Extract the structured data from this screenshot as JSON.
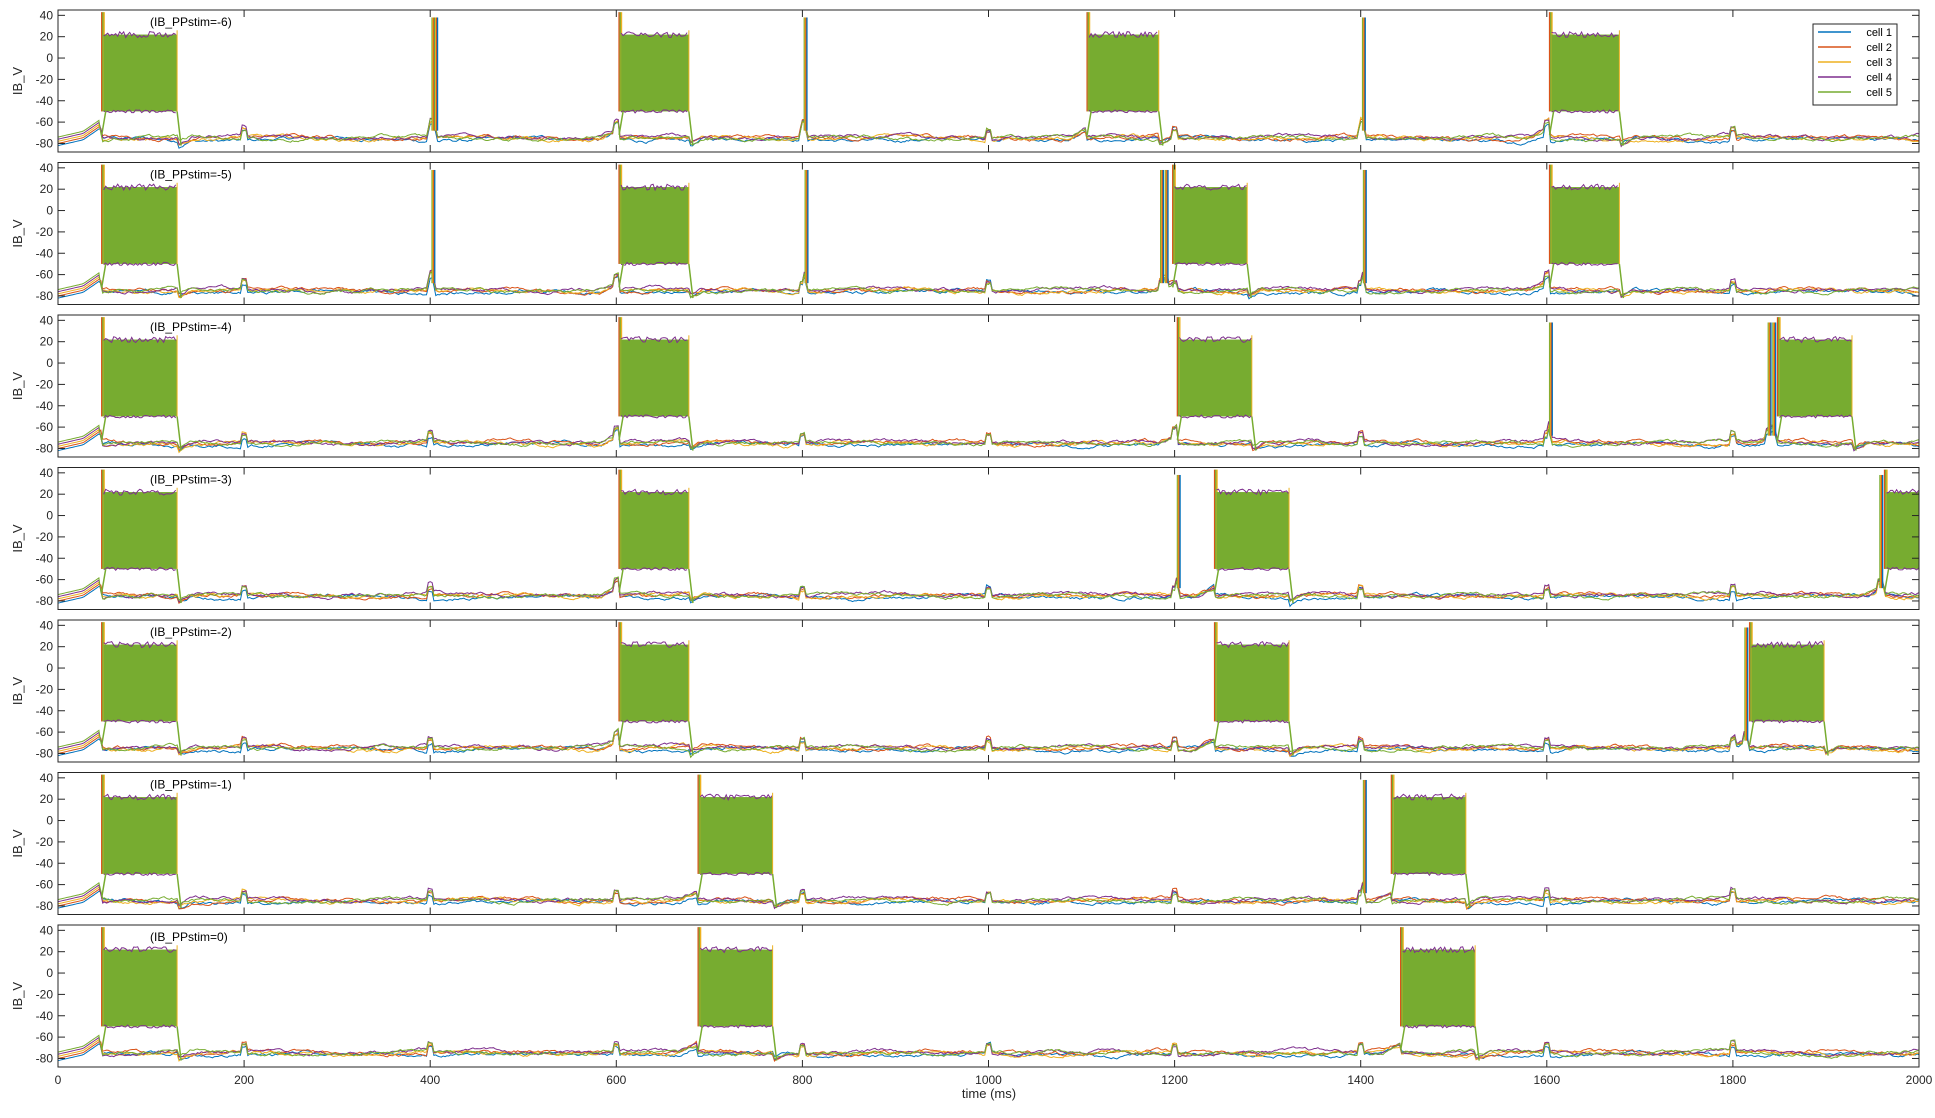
{
  "colors": {
    "cell_1": "#0072BD",
    "cell_2": "#D95319",
    "cell_3": "#EDB120",
    "cell_4": "#7E2F8E",
    "cell_5": "#77AC30",
    "axes": "#262626",
    "background": "#ffffff"
  },
  "chart_data": {
    "type": "line",
    "layout": "7 stacked subplots, shared x-axis",
    "xlabel": "time (ms)",
    "xlim": [
      0,
      2000
    ],
    "xticks": [
      0,
      200,
      400,
      600,
      800,
      1000,
      1200,
      1400,
      1600,
      1800,
      2000
    ],
    "ylim": [
      -88,
      45
    ],
    "yticks": [
      -80,
      -60,
      -40,
      -20,
      0,
      20,
      40
    ],
    "ylabel": "IB_V",
    "grid": false,
    "legend": {
      "placement": "top-right of first subplot",
      "entries": [
        "cell 1",
        "cell 2",
        "cell 3",
        "cell 4",
        "cell 5"
      ]
    },
    "baseline_mV": -75,
    "burst_plateau_mV": [
      -50,
      22
    ],
    "panels": [
      {
        "title": "(IB_PPstim=-6)",
        "bursts_ms": [
          [
            47,
            128
          ],
          [
            603,
            678
          ],
          [
            1106,
            1183
          ],
          [
            1603,
            1678
          ]
        ],
        "single_spikes_ms": [
          402,
          405,
          802,
          1402
        ]
      },
      {
        "title": "(IB_PPstim=-5)",
        "bursts_ms": [
          [
            47,
            128
          ],
          [
            603,
            678
          ],
          [
            1198,
            1278
          ],
          [
            1603,
            1678
          ]
        ],
        "single_spikes_ms": [
          402,
          803,
          1185,
          1190,
          1403
        ]
      },
      {
        "title": "(IB_PPstim=-4)",
        "bursts_ms": [
          [
            47,
            128
          ],
          [
            603,
            678
          ],
          [
            1203,
            1283
          ],
          [
            1848,
            1928
          ]
        ],
        "single_spikes_ms": [
          1603,
          1838,
          1843
        ]
      },
      {
        "title": "(IB_PPstim=-3)",
        "bursts_ms": [
          [
            47,
            128
          ],
          [
            603,
            678
          ],
          [
            1243,
            1323
          ],
          [
            1963,
            2000
          ]
        ],
        "single_spikes_ms": [
          1203,
          1958
        ]
      },
      {
        "title": "(IB_PPstim=-2)",
        "bursts_ms": [
          [
            47,
            128
          ],
          [
            603,
            678
          ],
          [
            1243,
            1323
          ],
          [
            1818,
            1898
          ]
        ],
        "single_spikes_ms": [
          1813
        ]
      },
      {
        "title": "(IB_PPstim=-1)",
        "bursts_ms": [
          [
            47,
            128
          ],
          [
            688,
            768
          ],
          [
            1433,
            1513
          ]
        ],
        "single_spikes_ms": [
          1403
        ]
      },
      {
        "title": "(IB_PPstim=0)",
        "bursts_ms": [
          [
            47,
            128
          ],
          [
            688,
            768
          ],
          [
            1443,
            1523
          ]
        ],
        "single_spikes_ms": []
      }
    ]
  }
}
